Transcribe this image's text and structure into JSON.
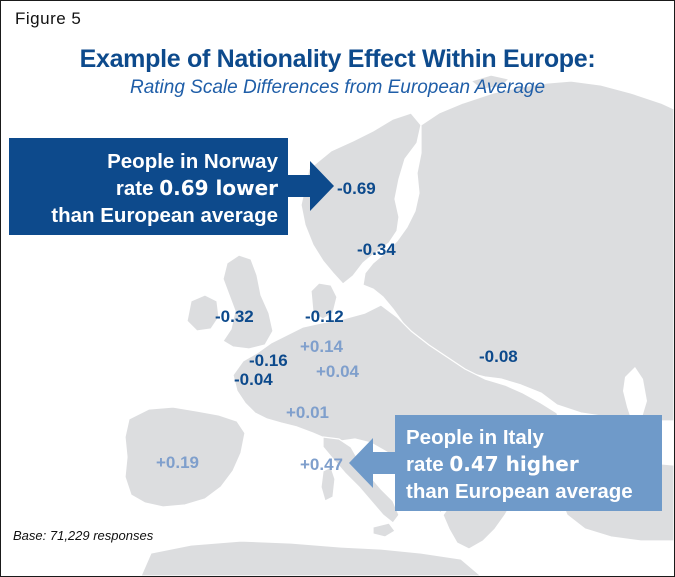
{
  "figure_label": "Figure 5",
  "title": "Example of Nationality Effect Within Europe:",
  "subtitle": "Rating Scale Differences from European Average",
  "colors": {
    "title": "#0d4a8c",
    "negative_value": "#0d4a8c",
    "positive_value": "#7f9fcc",
    "land": "#dcdddf",
    "norway_callout": "#0d4a8c",
    "italy_callout": "#6f9ac9"
  },
  "map_values": [
    {
      "region": "Norway",
      "value": "-0.69"
    },
    {
      "region": "Sweden",
      "value": "-0.34"
    },
    {
      "region": "United Kingdom",
      "value": "-0.32"
    },
    {
      "region": "Denmark",
      "value": "-0.12"
    },
    {
      "region": "Netherlands",
      "value": "-0.16"
    },
    {
      "region": "Germany",
      "value": "+0.14"
    },
    {
      "region": "Belgium",
      "value": "-0.04"
    },
    {
      "region": "Central Europe",
      "value": "+0.04"
    },
    {
      "region": "Switzerland",
      "value": "+0.01"
    },
    {
      "region": "Russia",
      "value": "-0.08"
    },
    {
      "region": "Spain",
      "value": "+0.19"
    },
    {
      "region": "Italy",
      "value": "+0.47"
    }
  ],
  "callouts": {
    "norway": {
      "line1": "People in Norway",
      "line2_prefix": "rate",
      "line2_emphasis": "0.69 lower",
      "line3": "than European average"
    },
    "italy": {
      "line1": "People in Italy",
      "line2_prefix": "rate",
      "line2_emphasis": "0.47 higher",
      "line3": "than European average"
    }
  },
  "base_note": "Base: 71,229 responses"
}
